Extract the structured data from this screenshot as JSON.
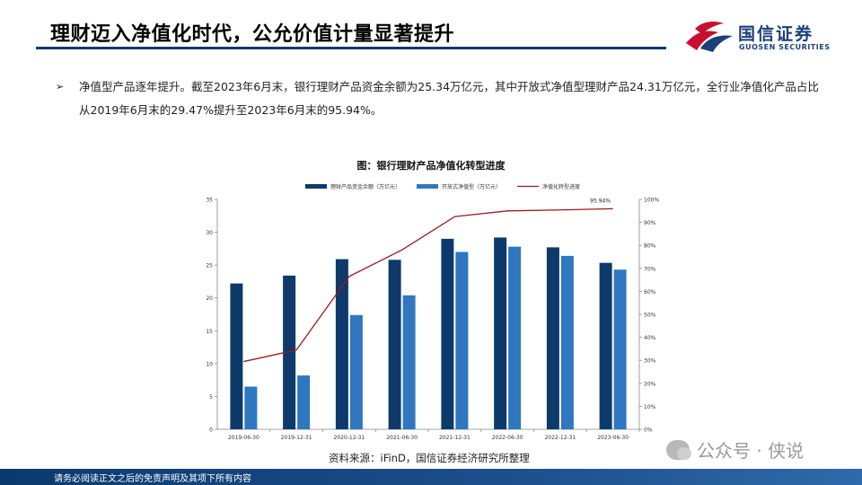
{
  "header": {
    "title": "理财迈入净值化时代，公允价值计量显著提升",
    "logo_cn": "国信证券",
    "logo_en": "GUOSEN SECURITIES"
  },
  "bullet": {
    "text": "净值型产品逐年提升。截至2023年6月末，银行理财产品资金余额为25.34万亿元，其中开放式净值型理财产品24.31万亿元，全行业净值化产品占比从2019年6月末的29.47%提升至2023年6月末的95.94%。"
  },
  "source": "资料来源：iFinD，国信证券经济研究所整理",
  "watermark": "公众号 · 侠说",
  "footer": "请务必阅读正文之后的免责声明及其项下所有内容",
  "colors": {
    "bar_total": "#0d3a6b",
    "bar_open": "#2f78c0",
    "line_ratio": "#9b1b20",
    "title_rule": "#0b3a6e"
  },
  "chart_data": {
    "type": "bar",
    "title": "图：银行理财产品净值化转型进度",
    "categories": [
      "2019-06-30",
      "2019-12-31",
      "2020-12-31",
      "2021-06-30",
      "2021-12-31",
      "2022-06-30",
      "2022-12-31",
      "2023-06-30"
    ],
    "series": [
      {
        "name": "理财产品资金余额（万亿元）",
        "type": "bar",
        "axis": "left",
        "values": [
          22.2,
          23.4,
          25.9,
          25.8,
          29.0,
          29.2,
          27.7,
          25.34
        ]
      },
      {
        "name": "开放式净值型（万亿元）",
        "type": "bar",
        "axis": "left",
        "values": [
          6.5,
          8.2,
          17.4,
          20.4,
          27.0,
          27.8,
          26.4,
          24.31
        ]
      },
      {
        "name": "净值化转型进度",
        "type": "line",
        "axis": "right",
        "values": [
          29.47,
          34.5,
          66.5,
          78.0,
          92.5,
          95.0,
          95.4,
          95.94
        ]
      }
    ],
    "annotation": "95.94%",
    "ylim_left": [
      0,
      35
    ],
    "yticks_left": [
      "0",
      "5",
      "10",
      "15",
      "20",
      "25",
      "30",
      "35"
    ],
    "ylim_right": [
      0,
      100
    ],
    "yticks_right": [
      "0%",
      "10%",
      "20%",
      "30%",
      "40%",
      "50%",
      "60%",
      "70%",
      "80%",
      "90%",
      "100%"
    ],
    "legend_position": "top",
    "grid": false
  }
}
